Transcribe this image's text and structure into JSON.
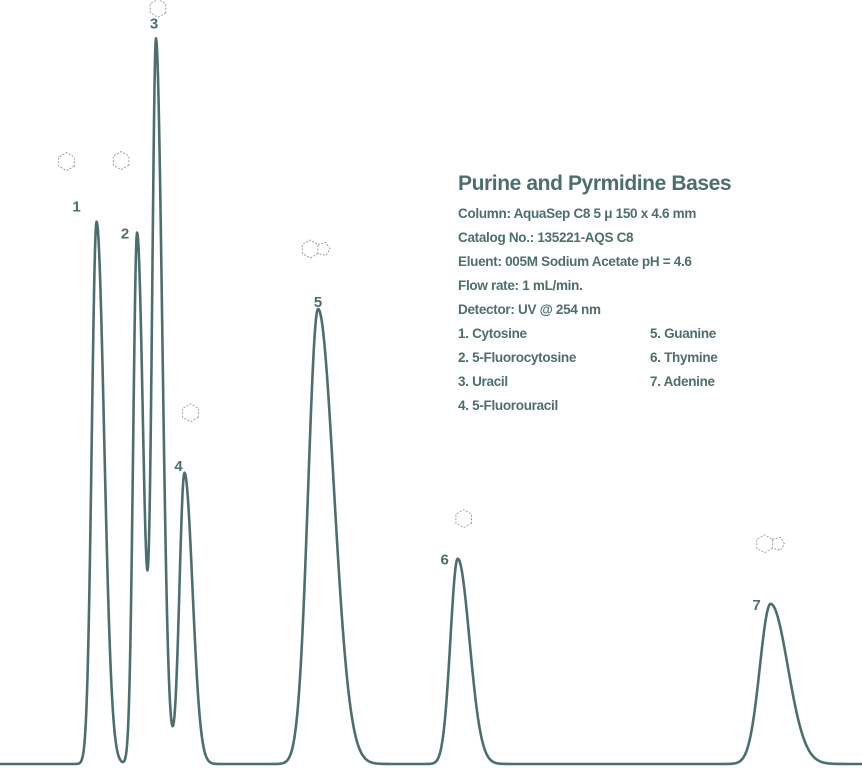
{
  "colors": {
    "trace": "#4e6e6e",
    "text": "#4e6e6e",
    "structure": "#7a8f8f"
  },
  "info": {
    "title": "Purine and Pyrmidine Bases",
    "column": "Column: AquaSep C8 5 μ 150 x 4.6 mm",
    "catalog": "Catalog No.: 135221-AQS C8",
    "eluent": "Eluent: 005M Sodium Acetate  pH = 4.6",
    "flow": "Flow rate: 1 mL/min.",
    "detector": "Detector: UV @ 254 nm",
    "compounds": [
      "1. Cytosine",
      "2. 5-Fluorocytosine",
      "3. Uracil",
      "4. 5-Fluorouracil",
      "5. Guanine",
      "6. Thymine",
      "7. Adenine"
    ]
  },
  "chart_data": {
    "type": "line",
    "title": "Purine and Pyrmidine Bases",
    "xlabel": "",
    "ylabel": "",
    "axes_shown": false,
    "grid": false,
    "x_scale": "relative (no axis printed)",
    "peaks": [
      {
        "label": "1",
        "compound": "Cytosine",
        "position": 0.112,
        "height": 0.745,
        "width": 0.0055
      },
      {
        "label": "2",
        "compound": "5-Fluorocytosine",
        "position": 0.159,
        "height": 0.73,
        "width": 0.0045
      },
      {
        "label": "3",
        "compound": "Uracil",
        "position": 0.181,
        "height": 0.99,
        "width": 0.0045
      },
      {
        "label": "4",
        "compound": "5-Fluorouracil",
        "position": 0.214,
        "height": 0.4,
        "width": 0.0058
      },
      {
        "label": "5",
        "compound": "Guanine",
        "position": 0.369,
        "height": 0.625,
        "width": 0.0115
      },
      {
        "label": "6",
        "compound": "Thymine",
        "position": 0.531,
        "height": 0.282,
        "width": 0.0085
      },
      {
        "label": "7",
        "compound": "Adenine",
        "position": 0.894,
        "height": 0.22,
        "width": 0.0125
      }
    ]
  }
}
